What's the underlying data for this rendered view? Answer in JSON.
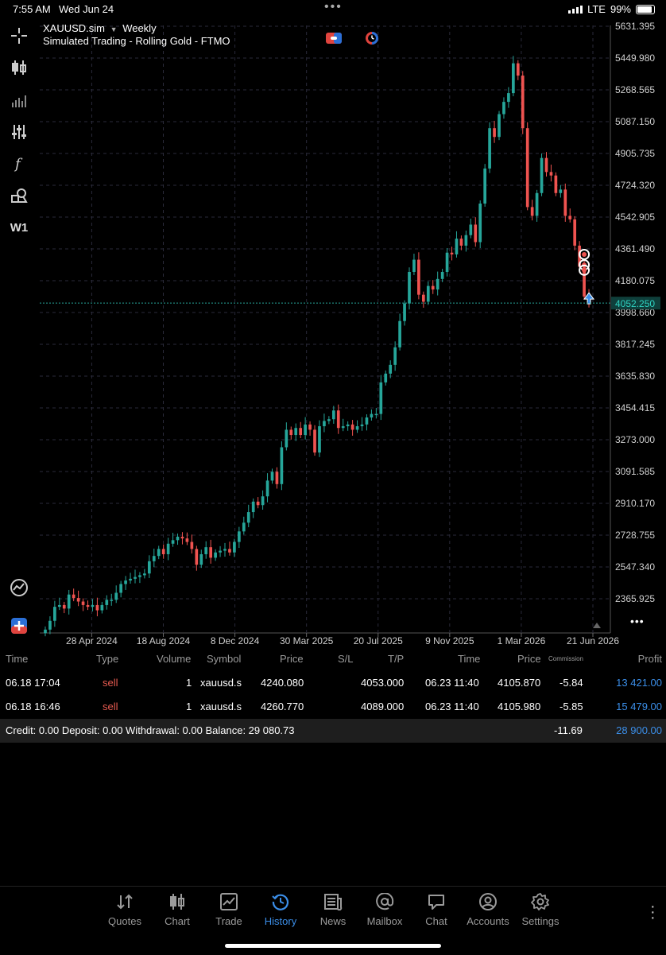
{
  "status": {
    "time": "7:55 AM",
    "date": "Wed Jun 24",
    "network": "LTE",
    "battery": "99%"
  },
  "chart": {
    "symbol": "XAUUSD.sim",
    "timeframe": "Weekly",
    "account": "Simulated Trading - Rolling Gold - FTMO",
    "timeframe_button": "W1",
    "current_price": "4052.250",
    "price_axis": [
      "5631.395",
      "5449.980",
      "5268.565",
      "5087.150",
      "4905.735",
      "4724.320",
      "4542.905",
      "4361.490",
      "4180.075",
      "3998.660",
      "3817.245",
      "3635.830",
      "3454.415",
      "3273.000",
      "3091.585",
      "2910.170",
      "2728.755",
      "2547.340",
      "2365.925"
    ],
    "date_axis": [
      "28 Apr 2024",
      "18 Aug 2024",
      "8 Dec 2024",
      "30 Mar 2025",
      "20 Jul 2025",
      "9 Nov 2025",
      "1 Mar 2026",
      "21 Jun 2026"
    ],
    "colors": {
      "bull": "#26a69a",
      "bear": "#ef5350",
      "grid": "#2a2a3a"
    }
  },
  "chart_data": {
    "type": "candlestick",
    "title": "XAUUSD.sim Weekly",
    "ylim": [
      2250,
      5700
    ],
    "x_start": "2024-03-10",
    "x_end": "2026-06-21",
    "current_price": 4052.25,
    "close": [
      2190,
      2240,
      2320,
      2330,
      2310,
      2390,
      2370,
      2350,
      2330,
      2320,
      2330,
      2300,
      2330,
      2360,
      2360,
      2400,
      2450,
      2470,
      2480,
      2490,
      2500,
      2510,
      2580,
      2610,
      2650,
      2620,
      2680,
      2700,
      2720,
      2710,
      2690,
      2650,
      2560,
      2620,
      2660,
      2600,
      2630,
      2640,
      2650,
      2630,
      2690,
      2750,
      2800,
      2860,
      2920,
      2900,
      2950,
      3040,
      3090,
      3020,
      3230,
      3330,
      3300,
      3340,
      3300,
      3360,
      3330,
      3200,
      3350,
      3380,
      3390,
      3440,
      3340,
      3350,
      3360,
      3330,
      3350,
      3360,
      3400,
      3420,
      3420,
      3600,
      3650,
      3700,
      3800,
      3950,
      4050,
      4230,
      4300,
      4100,
      4060,
      4150,
      4130,
      4190,
      4230,
      4340,
      4330,
      4420,
      4380,
      4440,
      4500,
      4400,
      4620,
      4820,
      5050,
      5000,
      5130,
      5200,
      5250,
      5420,
      5350,
      5050,
      4600,
      4550,
      4680,
      4880,
      4800,
      4780,
      4680,
      4700,
      4550,
      4530,
      4380,
      4260,
      4090,
      4053
    ],
    "trades": [
      {
        "time": "06.18 17:04",
        "type": "sell",
        "volume": "1",
        "symbol": "xauusd.s",
        "price": "4240.080",
        "tp": "4053.000",
        "close_time": "06.23 11:40",
        "close_price": "4105.870",
        "commission": "-5.84",
        "profit": "13 421.00"
      },
      {
        "time": "06.18 16:46",
        "type": "sell",
        "volume": "1",
        "symbol": "xauusd.s",
        "price": "4260.770",
        "tp": "4089.000",
        "close_time": "06.23 11:40",
        "close_price": "4105.980",
        "commission": "-5.85",
        "profit": "15 479.00"
      }
    ]
  },
  "history": {
    "headers": {
      "time": "Time",
      "type": "Type",
      "volume": "Volume",
      "symbol": "Symbol",
      "price": "Price",
      "sl": "S/L",
      "tp": "T/P",
      "time2": "Time",
      "price2": "Price",
      "commission": "Commission",
      "profit": "Profit"
    },
    "summary": {
      "text": "Credit: 0.00 Deposit: 0.00 Withdrawal: 0.00 Balance: 29 080.73",
      "commission": "-11.69",
      "profit": "28 900.00"
    }
  },
  "nav": [
    {
      "label": "Quotes",
      "icon": "quotes-icon"
    },
    {
      "label": "Chart",
      "icon": "chart-icon"
    },
    {
      "label": "Trade",
      "icon": "trade-icon"
    },
    {
      "label": "History",
      "icon": "history-icon",
      "active": true
    },
    {
      "label": "News",
      "icon": "news-icon"
    },
    {
      "label": "Mailbox",
      "icon": "mailbox-icon"
    },
    {
      "label": "Chat",
      "icon": "chat-icon"
    },
    {
      "label": "Accounts",
      "icon": "accounts-icon"
    },
    {
      "label": "Settings",
      "icon": "settings-icon"
    }
  ]
}
